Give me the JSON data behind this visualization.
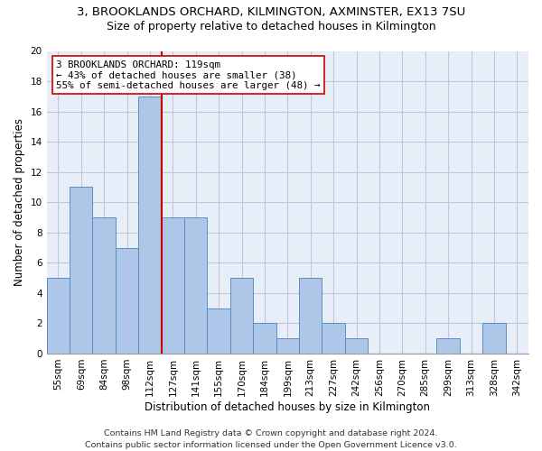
{
  "title1": "3, BROOKLANDS ORCHARD, KILMINGTON, AXMINSTER, EX13 7SU",
  "title2": "Size of property relative to detached houses in Kilmington",
  "xlabel": "Distribution of detached houses by size in Kilmington",
  "ylabel": "Number of detached properties",
  "categories": [
    "55sqm",
    "69sqm",
    "84sqm",
    "98sqm",
    "112sqm",
    "127sqm",
    "141sqm",
    "155sqm",
    "170sqm",
    "184sqm",
    "199sqm",
    "213sqm",
    "227sqm",
    "242sqm",
    "256sqm",
    "270sqm",
    "285sqm",
    "299sqm",
    "313sqm",
    "328sqm",
    "342sqm"
  ],
  "values": [
    5,
    11,
    9,
    7,
    17,
    9,
    9,
    3,
    5,
    2,
    1,
    5,
    2,
    1,
    0,
    0,
    0,
    1,
    0,
    2,
    0
  ],
  "bar_color": "#aec6e8",
  "bar_edge_color": "#5a8fc2",
  "vline_x": 4.5,
  "vline_color": "#cc0000",
  "annotation_text": "3 BROOKLANDS ORCHARD: 119sqm\n← 43% of detached houses are smaller (38)\n55% of semi-detached houses are larger (48) →",
  "annotation_box_color": "#ffffff",
  "annotation_edge_color": "#cc0000",
  "ylim": [
    0,
    20
  ],
  "yticks": [
    0,
    2,
    4,
    6,
    8,
    10,
    12,
    14,
    16,
    18,
    20
  ],
  "grid_color": "#c0c8d8",
  "background_color": "#e8eef8",
  "footer1": "Contains HM Land Registry data © Crown copyright and database right 2024.",
  "footer2": "Contains public sector information licensed under the Open Government Licence v3.0.",
  "title1_fontsize": 9.5,
  "title2_fontsize": 9,
  "xlabel_fontsize": 8.5,
  "ylabel_fontsize": 8.5,
  "tick_fontsize": 7.5,
  "annotation_fontsize": 7.8,
  "footer_fontsize": 6.8
}
